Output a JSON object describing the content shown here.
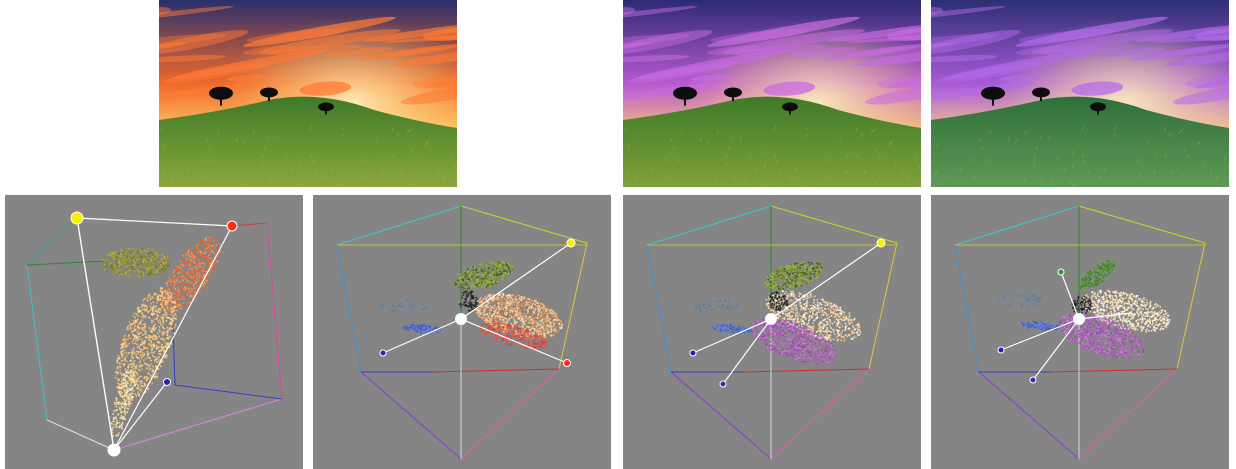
{
  "figure": {
    "photos": [
      {
        "id": "original",
        "sky_top": "#2a2f6e",
        "sky_mid": "#f06a2a",
        "sky_glow": "#ffd36a",
        "cloud": "#ff7a35",
        "hill": "#3f7a2a",
        "field": "#8aa83a"
      },
      {
        "id": "recolor-a",
        "sky_top": "#2c2a72",
        "sky_mid": "#b85ad0",
        "sky_glow": "#ffcf70",
        "cloud": "#c86ae0",
        "hill": "#3f7a2a",
        "field": "#7ea23a"
      },
      {
        "id": "recolor-b",
        "sky_top": "#2c2f72",
        "sky_mid": "#a85ad8",
        "sky_glow": "#ffd788",
        "cloud": "#b46ae8",
        "hill": "#2f6f3a",
        "field": "#5f9a55"
      }
    ],
    "panels": [
      {
        "id": "palette-hull-original",
        "background": "#858585"
      },
      {
        "id": "rgb-cube-original",
        "background": "#858585"
      },
      {
        "id": "rgb-cube-recolor-a",
        "background": "#858585"
      },
      {
        "id": "rgb-cube-recolor-b",
        "background": "#858585"
      }
    ],
    "palette_colors": {
      "yellow": "#f5f000",
      "red": "#ff2a10",
      "blue": "#2a1fb0",
      "purple": "#4a22a8",
      "green": "#2e9a3a",
      "white": "#ffffff"
    }
  }
}
